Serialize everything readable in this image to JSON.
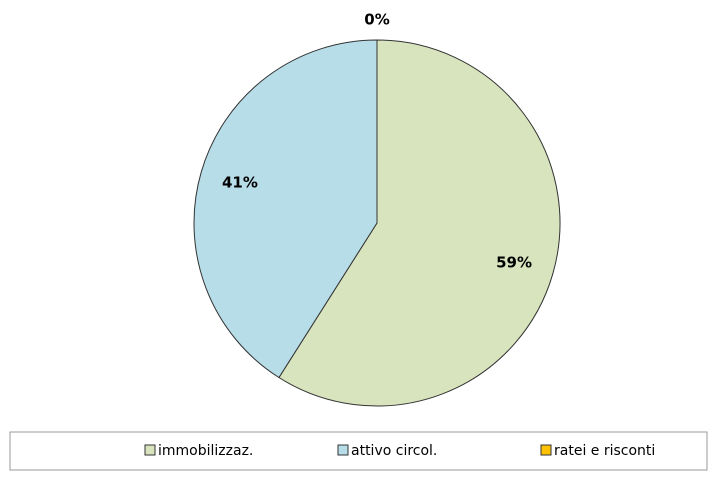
{
  "chart_data": {
    "type": "pie",
    "categories": [
      "immobilizzaz.",
      "attivo circol.",
      "ratei e risconti"
    ],
    "values": [
      59,
      41,
      0
    ],
    "value_labels": [
      "59%",
      "41%",
      "0%"
    ],
    "colors": [
      "#d7e4bd",
      "#b7dde8",
      "#ffc000"
    ]
  }
}
